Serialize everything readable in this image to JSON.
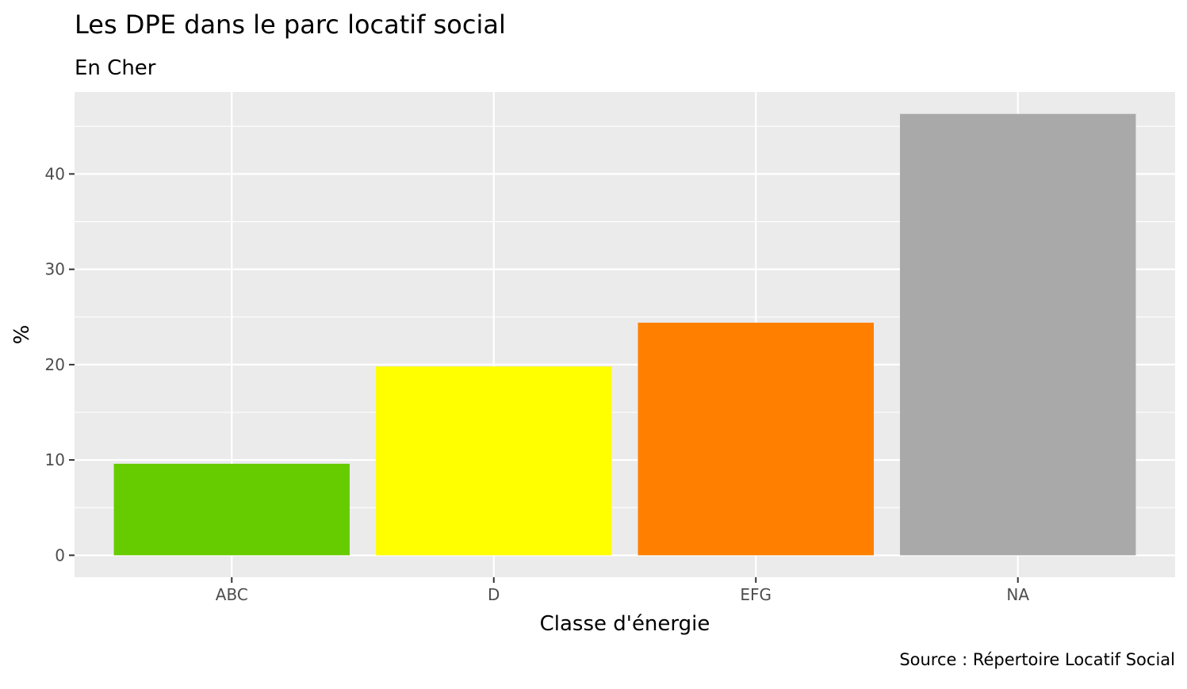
{
  "chart_data": {
    "type": "bar",
    "title": "Les DPE dans le parc locatif social",
    "subtitle": "En Cher",
    "xlabel": "Classe d'énergie",
    "ylabel": "%",
    "caption": "Source : Répertoire Locatif Social",
    "categories": [
      "ABC",
      "D",
      "EFG",
      "NA"
    ],
    "values": [
      9.6,
      19.8,
      24.4,
      46.3
    ],
    "colors": [
      "#66CC00",
      "#FFFF00",
      "#FF7F00",
      "#A9A9A9"
    ],
    "ylim": [
      -2.3,
      48.6
    ],
    "yticks": [
      0,
      10,
      20,
      30,
      40
    ],
    "ytick_labels": [
      "0",
      "10",
      "20",
      "30",
      "40"
    ],
    "panel_background": "#EBEBEB",
    "grid": true,
    "legend": "none"
  }
}
